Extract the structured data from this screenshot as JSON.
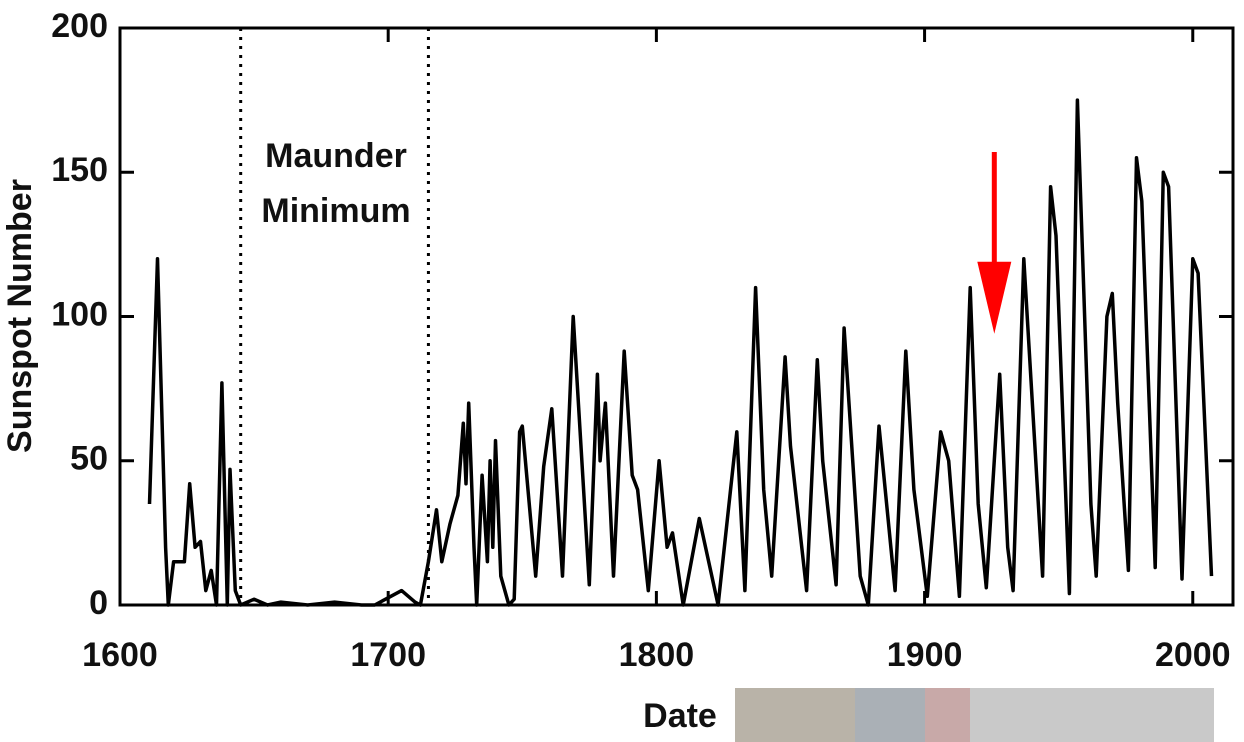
{
  "chart_data": {
    "type": "line",
    "x_label": "Date",
    "y_label": "Sunspot Number",
    "annotation": [
      "Maunder",
      "Minimum"
    ],
    "x": [
      1611,
      1614,
      1617,
      1618,
      1620,
      1624,
      1626,
      1628,
      1630,
      1632,
      1634,
      1636,
      1638,
      1640,
      1641,
      1643,
      1645,
      1650,
      1655,
      1660,
      1670,
      1680,
      1690,
      1695,
      1705,
      1710,
      1712,
      1715,
      1718,
      1720,
      1723,
      1726,
      1728,
      1729,
      1730,
      1732,
      1733,
      1735,
      1737,
      1738,
      1739,
      1740,
      1742,
      1745,
      1747,
      1749,
      1750,
      1755,
      1758,
      1761,
      1765,
      1769,
      1775,
      1778,
      1779,
      1781,
      1784,
      1788,
      1791,
      1793,
      1797,
      1801,
      1804,
      1806,
      1810,
      1816,
      1823,
      1830,
      1833,
      1837,
      1840,
      1843,
      1848,
      1850,
      1856,
      1860,
      1862,
      1867,
      1870,
      1876,
      1879,
      1883,
      1889,
      1893,
      1896,
      1901,
      1906,
      1909,
      1913,
      1917,
      1920,
      1923,
      1928,
      1931,
      1933,
      1937,
      1944,
      1947,
      1949,
      1954,
      1957,
      1962,
      1964,
      1968,
      1970,
      1972,
      1976,
      1979,
      1981,
      1986,
      1989,
      1991,
      1996,
      2000,
      2002,
      2007
    ],
    "values": [
      35,
      120,
      20,
      0,
      15,
      15,
      42,
      20,
      22,
      5,
      12,
      0,
      77,
      0,
      47,
      5,
      0,
      2,
      0,
      1,
      0,
      1,
      0,
      0,
      5,
      1,
      0,
      15,
      33,
      15,
      28,
      38,
      63,
      42,
      70,
      20,
      0,
      45,
      15,
      50,
      20,
      57,
      10,
      0,
      2,
      60,
      62,
      10,
      48,
      68,
      10,
      100,
      7,
      80,
      50,
      70,
      10,
      88,
      45,
      40,
      5,
      50,
      20,
      25,
      0,
      30,
      0,
      60,
      5,
      110,
      40,
      10,
      86,
      55,
      5,
      85,
      50,
      7,
      96,
      10,
      0,
      62,
      5,
      88,
      40,
      3,
      60,
      50,
      3,
      110,
      35,
      6,
      80,
      20,
      5,
      120,
      10,
      145,
      128,
      4,
      175,
      35,
      10,
      100,
      108,
      70,
      12,
      155,
      140,
      13,
      150,
      145,
      9,
      120,
      115,
      10
    ],
    "color": "#000000",
    "xlim": [
      1600,
      2015
    ],
    "ylim": [
      0,
      200
    ],
    "xticks": [
      1600,
      1700,
      1800,
      1900,
      2000
    ],
    "yticks": [
      0,
      50,
      100,
      150,
      200
    ],
    "vlines": [
      1645,
      1715
    ],
    "arrow": {
      "x": 1926,
      "y_from": 157,
      "y_to": 94,
      "color": "#ff0000"
    }
  }
}
